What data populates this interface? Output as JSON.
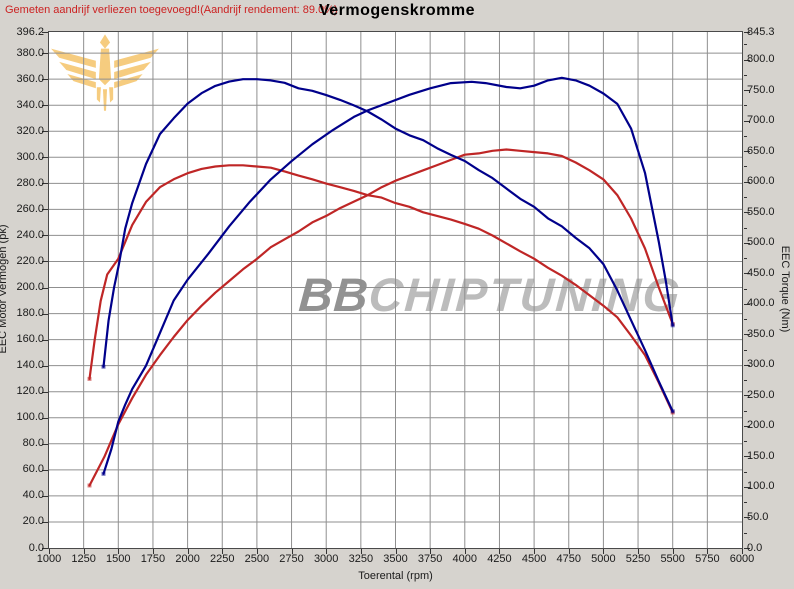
{
  "header": {
    "warning": "Gemeten aandrijf verliezen toegevoegd!(Aandrijf rendement: 89.0%)",
    "title": "Vermogenskromme"
  },
  "watermark": {
    "bold": "BB",
    "rest": "CHIPTUNING",
    "emblem_color": "#f5c469"
  },
  "colors": {
    "tuned": "#00008b",
    "original": "#bf2626",
    "grid": "#8f8f8f",
    "plot_background": "#ffffff",
    "page_background": "#d6d3ce",
    "warning_text": "#cc2222"
  },
  "chart_data": {
    "type": "line",
    "title": "Vermogenskromme",
    "xlabel": "Toerental (rpm)",
    "ylabel_left": "EEC Motor Vermogen (pk)",
    "ylabel_right": "EEC Torque (Nm)",
    "x_range": [
      1000,
      6000
    ],
    "y_left_range": [
      0,
      396.2
    ],
    "y_right_range": [
      0,
      845.3
    ],
    "x_ticks": [
      1000,
      1250,
      1500,
      1750,
      2000,
      2250,
      2500,
      2750,
      3000,
      3250,
      3500,
      3750,
      4000,
      4250,
      4500,
      4750,
      5000,
      5250,
      5500,
      5750,
      6000
    ],
    "y_left_ticks": [
      396.2,
      380,
      360,
      340,
      320,
      300,
      280,
      260,
      240,
      220,
      200,
      180,
      160,
      140,
      120,
      100,
      80,
      60,
      40,
      20,
      0
    ],
    "y_right_ticks": [
      845.3,
      800,
      750,
      700,
      650,
      600,
      550,
      500,
      450,
      400,
      350,
      300,
      250,
      200,
      150,
      100,
      50,
      0
    ],
    "y_right_minor_step": 25,
    "grid": {
      "x_step": 250,
      "y_left_step": 20,
      "on": true
    },
    "legend": "none",
    "series": [
      {
        "name": "power-original",
        "axis": "left",
        "unit": "pk",
        "color": "#bf2626",
        "points": [
          [
            1292,
            48
          ],
          [
            1400,
            70
          ],
          [
            1500,
            95
          ],
          [
            1600,
            115
          ],
          [
            1700,
            133
          ],
          [
            1800,
            148
          ],
          [
            1900,
            162
          ],
          [
            2000,
            175
          ],
          [
            2100,
            186
          ],
          [
            2200,
            196
          ],
          [
            2300,
            205
          ],
          [
            2400,
            214
          ],
          [
            2500,
            222
          ],
          [
            2600,
            231
          ],
          [
            2700,
            237
          ],
          [
            2800,
            243
          ],
          [
            2900,
            250
          ],
          [
            3000,
            255
          ],
          [
            3100,
            261
          ],
          [
            3200,
            266
          ],
          [
            3300,
            271
          ],
          [
            3400,
            277
          ],
          [
            3500,
            282
          ],
          [
            3600,
            286
          ],
          [
            3700,
            290
          ],
          [
            3800,
            294
          ],
          [
            3900,
            298
          ],
          [
            4000,
            302
          ],
          [
            4100,
            303
          ],
          [
            4200,
            305
          ],
          [
            4300,
            306
          ],
          [
            4400,
            305
          ],
          [
            4500,
            304
          ],
          [
            4600,
            303
          ],
          [
            4700,
            301
          ],
          [
            4800,
            296
          ],
          [
            4900,
            290
          ],
          [
            5000,
            283
          ],
          [
            5100,
            271
          ],
          [
            5200,
            253
          ],
          [
            5300,
            230
          ],
          [
            5400,
            200
          ],
          [
            5500,
            172
          ]
        ]
      },
      {
        "name": "torque-original",
        "axis": "right",
        "unit": "Nm",
        "color": "#bf2626",
        "points": [
          [
            1292,
            277
          ],
          [
            1330,
            341
          ],
          [
            1373,
            405
          ],
          [
            1420,
            448
          ],
          [
            1500,
            474
          ],
          [
            1600,
            529
          ],
          [
            1700,
            567
          ],
          [
            1800,
            591
          ],
          [
            1900,
            604
          ],
          [
            2000,
            614
          ],
          [
            2100,
            621
          ],
          [
            2200,
            625
          ],
          [
            2300,
            627
          ],
          [
            2400,
            627
          ],
          [
            2500,
            625
          ],
          [
            2600,
            623
          ],
          [
            2700,
            617
          ],
          [
            2800,
            610
          ],
          [
            2900,
            604
          ],
          [
            3000,
            597
          ],
          [
            3100,
            591
          ],
          [
            3200,
            585
          ],
          [
            3300,
            578
          ],
          [
            3400,
            574
          ],
          [
            3500,
            565
          ],
          [
            3600,
            559
          ],
          [
            3700,
            550
          ],
          [
            3800,
            544
          ],
          [
            3900,
            538
          ],
          [
            4000,
            531
          ],
          [
            4100,
            523
          ],
          [
            4200,
            512
          ],
          [
            4300,
            499
          ],
          [
            4400,
            486
          ],
          [
            4500,
            474
          ],
          [
            4600,
            459
          ],
          [
            4700,
            446
          ],
          [
            4800,
            431
          ],
          [
            4900,
            414
          ],
          [
            5000,
            397
          ],
          [
            5100,
            378
          ],
          [
            5200,
            348
          ],
          [
            5300,
            316
          ],
          [
            5400,
            271
          ],
          [
            5500,
            222
          ]
        ]
      },
      {
        "name": "torque-tuned",
        "axis": "right",
        "unit": "Nm",
        "color": "#00008b",
        "points": [
          [
            1393,
            297
          ],
          [
            1430,
            373
          ],
          [
            1470,
            427
          ],
          [
            1503,
            463
          ],
          [
            1550,
            523
          ],
          [
            1600,
            565
          ],
          [
            1700,
            629
          ],
          [
            1800,
            678
          ],
          [
            1900,
            704
          ],
          [
            2000,
            728
          ],
          [
            2100,
            745
          ],
          [
            2200,
            757
          ],
          [
            2300,
            764
          ],
          [
            2400,
            768
          ],
          [
            2500,
            768
          ],
          [
            2600,
            766
          ],
          [
            2700,
            762
          ],
          [
            2800,
            753
          ],
          [
            2900,
            749
          ],
          [
            3000,
            742
          ],
          [
            3100,
            734
          ],
          [
            3200,
            725
          ],
          [
            3300,
            715
          ],
          [
            3400,
            702
          ],
          [
            3500,
            687
          ],
          [
            3600,
            676
          ],
          [
            3700,
            668
          ],
          [
            3800,
            655
          ],
          [
            3900,
            644
          ],
          [
            4000,
            634
          ],
          [
            4100,
            619
          ],
          [
            4200,
            606
          ],
          [
            4300,
            589
          ],
          [
            4400,
            572
          ],
          [
            4500,
            559
          ],
          [
            4600,
            540
          ],
          [
            4700,
            527
          ],
          [
            4800,
            508
          ],
          [
            4900,
            491
          ],
          [
            5000,
            465
          ],
          [
            5100,
            422
          ],
          [
            5200,
            373
          ],
          [
            5300,
            324
          ],
          [
            5400,
            273
          ],
          [
            5500,
            224
          ]
        ]
      },
      {
        "name": "power-tuned",
        "axis": "left",
        "unit": "pk",
        "color": "#00008b",
        "points": [
          [
            1393,
            57
          ],
          [
            1450,
            76
          ],
          [
            1500,
            97
          ],
          [
            1550,
            110
          ],
          [
            1600,
            122
          ],
          [
            1700,
            140
          ],
          [
            1800,
            165
          ],
          [
            1900,
            190
          ],
          [
            2000,
            206
          ],
          [
            2150,
            226
          ],
          [
            2300,
            247
          ],
          [
            2450,
            266
          ],
          [
            2600,
            283
          ],
          [
            2750,
            297
          ],
          [
            2900,
            310
          ],
          [
            3050,
            321
          ],
          [
            3200,
            331
          ],
          [
            3300,
            336
          ],
          [
            3450,
            342
          ],
          [
            3600,
            348
          ],
          [
            3750,
            353
          ],
          [
            3900,
            357
          ],
          [
            4050,
            358
          ],
          [
            4150,
            357
          ],
          [
            4300,
            354
          ],
          [
            4400,
            353
          ],
          [
            4500,
            355
          ],
          [
            4600,
            359
          ],
          [
            4700,
            361
          ],
          [
            4800,
            359
          ],
          [
            4900,
            355
          ],
          [
            5000,
            349
          ],
          [
            5100,
            341
          ],
          [
            5200,
            322
          ],
          [
            5300,
            288
          ],
          [
            5400,
            235
          ],
          [
            5450,
            205
          ],
          [
            5500,
            171
          ]
        ]
      }
    ]
  }
}
